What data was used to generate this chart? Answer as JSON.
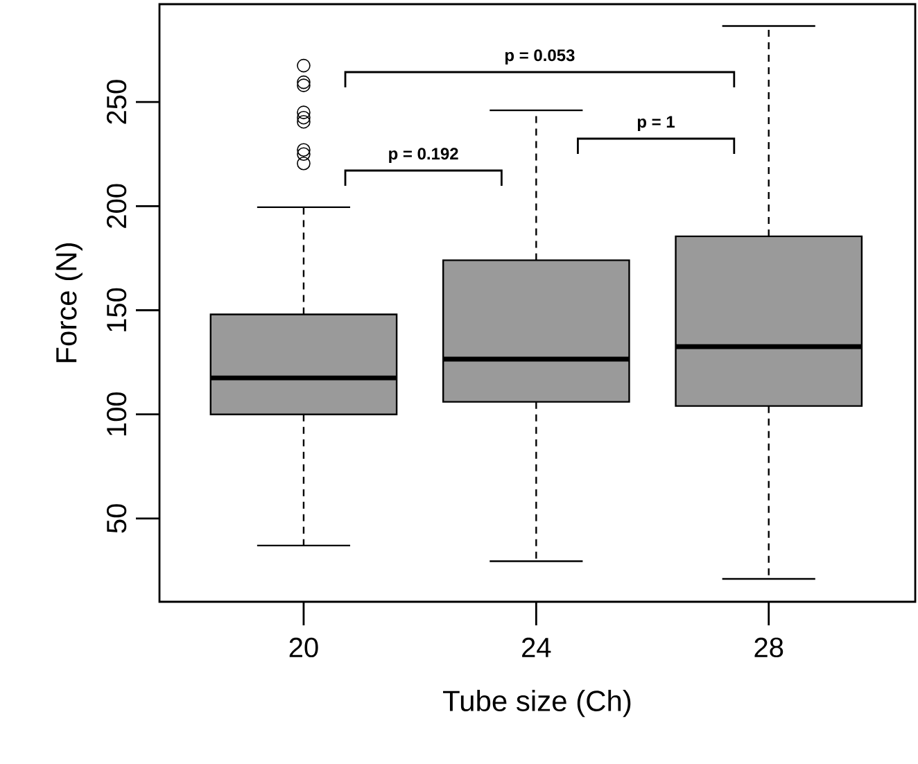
{
  "chart_data": {
    "type": "box",
    "xlabel": "Tube size (Ch)",
    "ylabel": "Force (N)",
    "categories": [
      "20",
      "24",
      "28"
    ],
    "color": "#9a9a9a",
    "boxes": [
      {
        "low": 37,
        "q1": 100,
        "median": 117.5,
        "q3": 148,
        "high": 199.5,
        "outliers": [
          267.5,
          259.5,
          258,
          245,
          242.5,
          240.5,
          227,
          225,
          220.5
        ]
      },
      {
        "low": 29.5,
        "q1": 106,
        "median": 126.5,
        "q3": 174,
        "high": 246
      },
      {
        "low": 21,
        "q1": 104,
        "median": 132.5,
        "q3": 185.5,
        "high": 286.5
      }
    ],
    "ylim": [
      10,
      297
    ],
    "yticks": [
      50,
      100,
      150,
      200,
      250
    ],
    "annotations": [
      "p = 0.192",
      "p = 1",
      "p = 0.053"
    ]
  }
}
